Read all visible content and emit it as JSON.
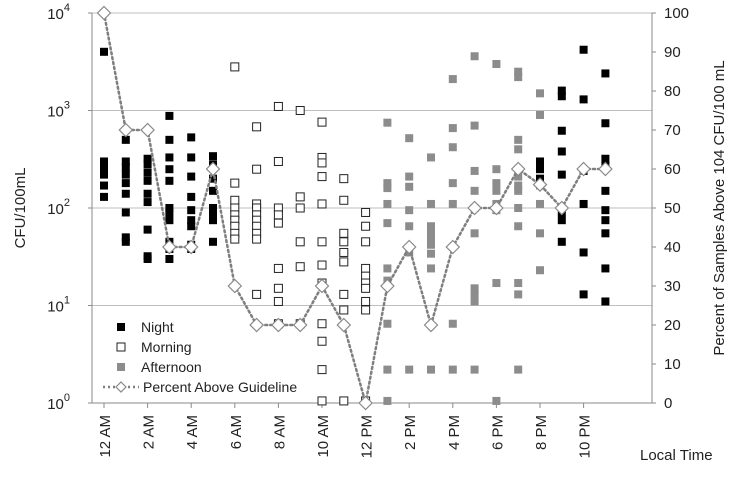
{
  "chart_data": {
    "type": "scatter",
    "title": "",
    "xlabel": "Local Time",
    "ylabel_left": "CFU/100mL",
    "ylabel_right": "Percent of Samples Above 104 CFU/100 mL",
    "x_range": [
      0,
      23
    ],
    "x_tick_labels": [
      "12 AM",
      "2 AM",
      "4 AM",
      "6 AM",
      "8 AM",
      "10 AM",
      "12 PM",
      "2 PM",
      "4 PM",
      "6 PM",
      "8 PM",
      "10 PM"
    ],
    "x_tick_hours": [
      0,
      2,
      4,
      6,
      8,
      10,
      12,
      14,
      16,
      18,
      20,
      22
    ],
    "y_left": {
      "scale": "log",
      "range": [
        1,
        10000
      ],
      "tick_base": "10",
      "tick_exponents": [
        "0",
        "1",
        "2",
        "3",
        "4"
      ]
    },
    "y_right": {
      "scale": "linear",
      "range": [
        0,
        100
      ],
      "ticks": [
        "0",
        "10",
        "20",
        "30",
        "40",
        "50",
        "60",
        "70",
        "80",
        "90",
        "100"
      ]
    },
    "gridlines_right_values": [
      25,
      50,
      75,
      100
    ],
    "legend": {
      "position": "bottom-left",
      "entries": [
        "Night",
        "Morning",
        "Afternoon",
        "Percent Above Guideline"
      ]
    },
    "colors": {
      "night": "#000000",
      "morning": "#ffffff",
      "morning_stroke": "#222222",
      "afternoon": "#8c8c8c",
      "percent_line": "#7f7f7f",
      "grid": "#bfbfbf"
    },
    "series": [
      {
        "name": "Night",
        "marker": "filled-square",
        "axis": "left",
        "points": [
          [
            0,
            4000
          ],
          [
            0,
            300
          ],
          [
            0,
            260
          ],
          [
            0,
            220
          ],
          [
            0,
            170
          ],
          [
            0,
            130
          ],
          [
            1,
            500
          ],
          [
            1,
            300
          ],
          [
            1,
            260
          ],
          [
            1,
            220
          ],
          [
            1,
            180
          ],
          [
            1,
            140
          ],
          [
            1,
            90
          ],
          [
            1,
            50
          ],
          [
            1,
            45
          ],
          [
            2,
            320
          ],
          [
            2,
            280
          ],
          [
            2,
            230
          ],
          [
            2,
            190
          ],
          [
            2,
            140
          ],
          [
            2,
            115
          ],
          [
            2,
            60
          ],
          [
            2,
            32
          ],
          [
            2,
            30
          ],
          [
            3,
            880
          ],
          [
            3,
            500
          ],
          [
            3,
            330
          ],
          [
            3,
            250
          ],
          [
            3,
            190
          ],
          [
            3,
            100
          ],
          [
            3,
            90
          ],
          [
            3,
            75
          ],
          [
            3,
            45
          ],
          [
            3,
            38
          ],
          [
            3,
            30
          ],
          [
            4,
            530
          ],
          [
            4,
            330
          ],
          [
            4,
            210
          ],
          [
            4,
            130
          ],
          [
            4,
            95
          ],
          [
            4,
            75
          ],
          [
            4,
            65
          ],
          [
            4,
            42
          ],
          [
            4,
            38
          ],
          [
            5,
            340
          ],
          [
            5,
            280
          ],
          [
            5,
            200
          ],
          [
            5,
            150
          ],
          [
            5,
            100
          ],
          [
            5,
            90
          ],
          [
            5,
            75
          ],
          [
            5,
            45
          ],
          [
            20,
            300
          ],
          [
            20,
            250
          ],
          [
            20,
            200
          ],
          [
            21,
            1600
          ],
          [
            21,
            1400
          ],
          [
            21,
            620
          ],
          [
            21,
            380
          ],
          [
            21,
            220
          ],
          [
            21,
            90
          ],
          [
            21,
            75
          ],
          [
            21,
            45
          ],
          [
            22,
            4200
          ],
          [
            22,
            1300
          ],
          [
            22,
            240
          ],
          [
            22,
            110
          ],
          [
            22,
            35
          ],
          [
            22,
            13
          ],
          [
            23,
            2400
          ],
          [
            23,
            740
          ],
          [
            23,
            320
          ],
          [
            23,
            270
          ],
          [
            23,
            150
          ],
          [
            23,
            95
          ],
          [
            23,
            75
          ],
          [
            23,
            55
          ],
          [
            23,
            24
          ],
          [
            23,
            11
          ]
        ]
      },
      {
        "name": "Morning",
        "marker": "open-square",
        "axis": "left",
        "points": [
          [
            6,
            2800
          ],
          [
            6,
            180
          ],
          [
            6,
            120
          ],
          [
            6,
            100
          ],
          [
            6,
            85
          ],
          [
            6,
            75
          ],
          [
            6,
            65
          ],
          [
            6,
            55
          ],
          [
            6,
            48
          ],
          [
            7,
            680
          ],
          [
            7,
            250
          ],
          [
            7,
            110
          ],
          [
            7,
            100
          ],
          [
            7,
            85
          ],
          [
            7,
            75
          ],
          [
            7,
            65
          ],
          [
            7,
            55
          ],
          [
            7,
            48
          ],
          [
            7,
            13
          ],
          [
            8,
            1100
          ],
          [
            8,
            300
          ],
          [
            8,
            100
          ],
          [
            8,
            85
          ],
          [
            8,
            70
          ],
          [
            8,
            24
          ],
          [
            8,
            15
          ],
          [
            8,
            11
          ],
          [
            8,
            6.5
          ],
          [
            9,
            1000
          ],
          [
            9,
            130
          ],
          [
            9,
            100
          ],
          [
            9,
            45
          ],
          [
            9,
            25
          ],
          [
            9,
            6.5
          ],
          [
            10,
            760
          ],
          [
            10,
            330
          ],
          [
            10,
            290
          ],
          [
            10,
            210
          ],
          [
            10,
            110
          ],
          [
            10,
            45
          ],
          [
            10,
            26
          ],
          [
            10,
            17
          ],
          [
            10,
            6.5
          ],
          [
            10,
            4.3
          ],
          [
            10,
            2.2
          ],
          [
            10,
            1.05
          ],
          [
            11,
            200
          ],
          [
            11,
            120
          ],
          [
            11,
            55
          ],
          [
            11,
            45
          ],
          [
            11,
            35
          ],
          [
            11,
            28
          ],
          [
            11,
            13
          ],
          [
            11,
            9
          ],
          [
            11,
            1.05
          ],
          [
            12,
            90
          ],
          [
            12,
            65
          ],
          [
            12,
            45
          ],
          [
            12,
            24
          ],
          [
            12,
            20
          ],
          [
            12,
            17
          ],
          [
            12,
            15
          ],
          [
            12,
            11
          ],
          [
            12,
            9
          ],
          [
            12,
            1.05
          ]
        ]
      },
      {
        "name": "Afternoon",
        "marker": "grey-square",
        "axis": "left",
        "points": [
          [
            13,
            750
          ],
          [
            13,
            180
          ],
          [
            13,
            160
          ],
          [
            13,
            110
          ],
          [
            13,
            70
          ],
          [
            13,
            24
          ],
          [
            13,
            18
          ],
          [
            13,
            6.5
          ],
          [
            13,
            2.2
          ],
          [
            13,
            1.05
          ],
          [
            14,
            520
          ],
          [
            14,
            210
          ],
          [
            14,
            165
          ],
          [
            14,
            95
          ],
          [
            14,
            65
          ],
          [
            14,
            35
          ],
          [
            14,
            2.2
          ],
          [
            15,
            330
          ],
          [
            15,
            110
          ],
          [
            15,
            65
          ],
          [
            15,
            55
          ],
          [
            15,
            48
          ],
          [
            15,
            42
          ],
          [
            15,
            34
          ],
          [
            15,
            24
          ],
          [
            15,
            2.2
          ],
          [
            16,
            2100
          ],
          [
            16,
            660
          ],
          [
            16,
            420
          ],
          [
            16,
            180
          ],
          [
            16,
            110
          ],
          [
            16,
            6.5
          ],
          [
            16,
            2.2
          ],
          [
            17,
            3600
          ],
          [
            17,
            700
          ],
          [
            17,
            240
          ],
          [
            17,
            150
          ],
          [
            17,
            100
          ],
          [
            17,
            55
          ],
          [
            17,
            15
          ],
          [
            17,
            13
          ],
          [
            17,
            11
          ],
          [
            17,
            2.2
          ],
          [
            18,
            3000
          ],
          [
            18,
            250
          ],
          [
            18,
            180
          ],
          [
            18,
            150
          ],
          [
            18,
            110
          ],
          [
            18,
            95
          ],
          [
            18,
            17
          ],
          [
            18,
            1.05
          ],
          [
            19,
            2500
          ],
          [
            19,
            2200
          ],
          [
            19,
            500
          ],
          [
            19,
            400
          ],
          [
            19,
            210
          ],
          [
            19,
            170
          ],
          [
            19,
            150
          ],
          [
            19,
            100
          ],
          [
            19,
            65
          ],
          [
            19,
            17
          ],
          [
            19,
            13
          ],
          [
            19,
            2.2
          ],
          [
            20,
            1500
          ],
          [
            20,
            900
          ],
          [
            20,
            170
          ],
          [
            20,
            110
          ],
          [
            20,
            55
          ],
          [
            20,
            23
          ]
        ]
      },
      {
        "name": "Percent Above Guideline",
        "marker": "open-diamond",
        "line": "dotted",
        "axis": "right",
        "x": [
          0,
          1,
          2,
          3,
          4,
          5,
          6,
          7,
          8,
          9,
          10,
          11,
          12,
          13,
          14,
          15,
          16,
          17,
          18,
          19,
          20,
          21,
          22,
          23
        ],
        "y": [
          100,
          70,
          70,
          40,
          40,
          60,
          30,
          20,
          20,
          20,
          30,
          20,
          0,
          30,
          40,
          20,
          40,
          50,
          50,
          60,
          56,
          50,
          60,
          60
        ]
      }
    ]
  }
}
